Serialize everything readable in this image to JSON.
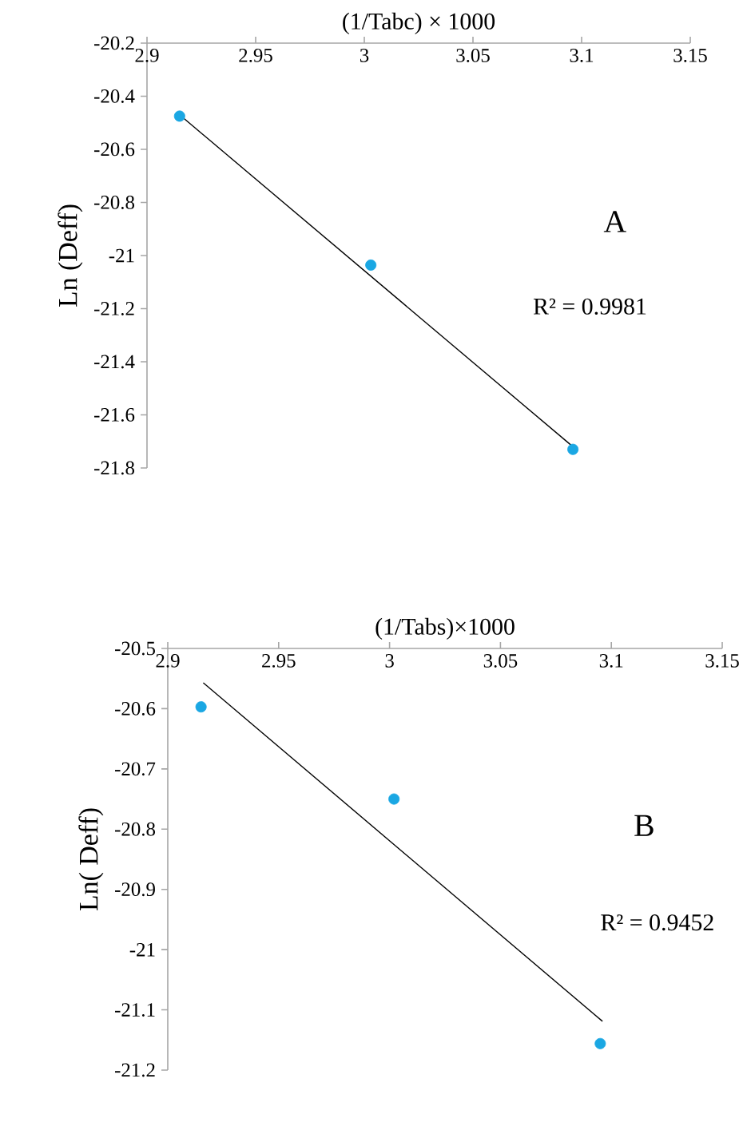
{
  "chart_data": [
    {
      "type": "scatter",
      "xlabel": "(1/Tabc) × 1000",
      "ylabel": "Ln (Deff)",
      "xlim": [
        2.9,
        3.15
      ],
      "ylim": [
        -21.8,
        -20.2
      ],
      "xticks": [
        2.9,
        2.95,
        3,
        3.05,
        3.1,
        3.15
      ],
      "yticks": [
        -21.8,
        -21.6,
        -21.4,
        -21.2,
        -21,
        -20.8,
        -20.6,
        -20.4,
        -20.2
      ],
      "grid": false,
      "annotations": [
        "A",
        "R² = 0.9981"
      ],
      "series": [
        {
          "color": "#1aa7e3",
          "marker": "circle",
          "x": [
            2.915,
            3.003,
            3.096
          ],
          "values": [
            -20.475,
            -21.036,
            -21.73
          ]
        },
        {
          "type": "line",
          "color": "#000000",
          "marker": "none",
          "x": [
            2.915,
            3.096
          ],
          "values": [
            -20.47,
            -21.72
          ]
        }
      ]
    },
    {
      "type": "scatter",
      "xlabel": "(1/Tabs)×1000",
      "ylabel": "Ln( Deff)",
      "xlim": [
        2.9,
        3.15
      ],
      "ylim": [
        -21.2,
        -20.5
      ],
      "xticks": [
        2.9,
        2.95,
        3,
        3.05,
        3.1,
        3.15
      ],
      "yticks": [
        -21.2,
        -21.1,
        -21,
        -20.9,
        -20.8,
        -20.7,
        -20.6,
        -20.5
      ],
      "grid": false,
      "annotations": [
        "B",
        "R² = 0.9452"
      ],
      "series": [
        {
          "color": "#1aa7e3",
          "marker": "circle",
          "x": [
            2.915,
            3.002,
            3.095
          ],
          "values": [
            -20.597,
            -20.75,
            -21.156
          ]
        },
        {
          "type": "line",
          "color": "#000000",
          "marker": "none",
          "x": [
            2.916,
            3.096
          ],
          "values": [
            -20.557,
            -21.119
          ]
        }
      ]
    }
  ]
}
